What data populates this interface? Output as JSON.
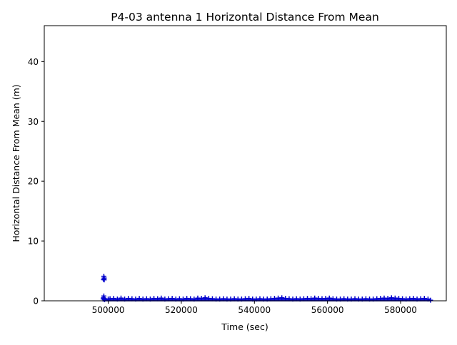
{
  "chart_data": {
    "type": "scatter",
    "title": "P4-03 antenna 1 Horizontal Distance From Mean",
    "xlabel": "Time (sec)",
    "ylabel": "Horizontal Distance From Mean (m)",
    "xlim": [
      482500,
      592500
    ],
    "ylim": [
      0,
      46
    ],
    "xticks": [
      500000,
      520000,
      540000,
      560000,
      580000
    ],
    "xtick_labels": [
      "500000",
      "520000",
      "540000",
      "560000",
      "580000"
    ],
    "yticks": [
      0,
      10,
      20,
      30,
      40
    ],
    "ytick_labels": [
      "0",
      "10",
      "20",
      "30",
      "40"
    ],
    "grid": false,
    "marker": "plus",
    "color": "#0000cc",
    "series": [
      {
        "x": [
          498600,
          498700,
          498800,
          498900,
          499000,
          498700,
          498900,
          498800,
          498900,
          500000,
          500500,
          501500,
          502500,
          503500,
          504500,
          505500,
          506500,
          507500,
          508500,
          509500,
          510500,
          511500,
          512500,
          513500,
          514500,
          515500,
          516500,
          517500,
          518500,
          519500,
          520500,
          521500,
          522500,
          523500,
          524500,
          525500,
          526500,
          527500,
          528500,
          529500,
          530500,
          531500,
          532500,
          533500,
          534500,
          535500,
          536500,
          537500,
          538500,
          539500,
          540500,
          541500,
          542500,
          543500,
          544500,
          545500,
          546500,
          547500,
          548500,
          549500,
          550500,
          551500,
          552500,
          553500,
          554500,
          555500,
          556500,
          557500,
          558500,
          559500,
          560500,
          561500,
          562500,
          563500,
          564500,
          565500,
          566500,
          567500,
          568500,
          569500,
          570500,
          571500,
          572500,
          573500,
          574500,
          575500,
          576500,
          577500,
          578500,
          579500,
          580500,
          581500,
          582500,
          583500,
          584500,
          585500,
          586500,
          587500,
          588200
        ],
        "y": [
          0.3,
          0.5,
          0.8,
          0.4,
          0.2,
          3.6,
          3.8,
          4.1,
          3.5,
          0.3,
          0.35,
          0.4,
          0.3,
          0.45,
          0.3,
          0.4,
          0.35,
          0.3,
          0.4,
          0.3,
          0.35,
          0.3,
          0.4,
          0.35,
          0.45,
          0.3,
          0.35,
          0.4,
          0.3,
          0.35,
          0.3,
          0.4,
          0.35,
          0.3,
          0.45,
          0.4,
          0.5,
          0.4,
          0.35,
          0.3,
          0.3,
          0.35,
          0.3,
          0.3,
          0.35,
          0.3,
          0.3,
          0.35,
          0.4,
          0.3,
          0.3,
          0.35,
          0.3,
          0.3,
          0.35,
          0.4,
          0.45,
          0.5,
          0.4,
          0.35,
          0.3,
          0.35,
          0.3,
          0.35,
          0.4,
          0.35,
          0.45,
          0.4,
          0.35,
          0.4,
          0.45,
          0.35,
          0.3,
          0.3,
          0.35,
          0.3,
          0.3,
          0.35,
          0.3,
          0.3,
          0.35,
          0.3,
          0.3,
          0.35,
          0.4,
          0.45,
          0.4,
          0.5,
          0.45,
          0.4,
          0.35,
          0.3,
          0.35,
          0.4,
          0.3,
          0.35,
          0.4,
          0.3,
          0.1
        ]
      }
    ]
  }
}
